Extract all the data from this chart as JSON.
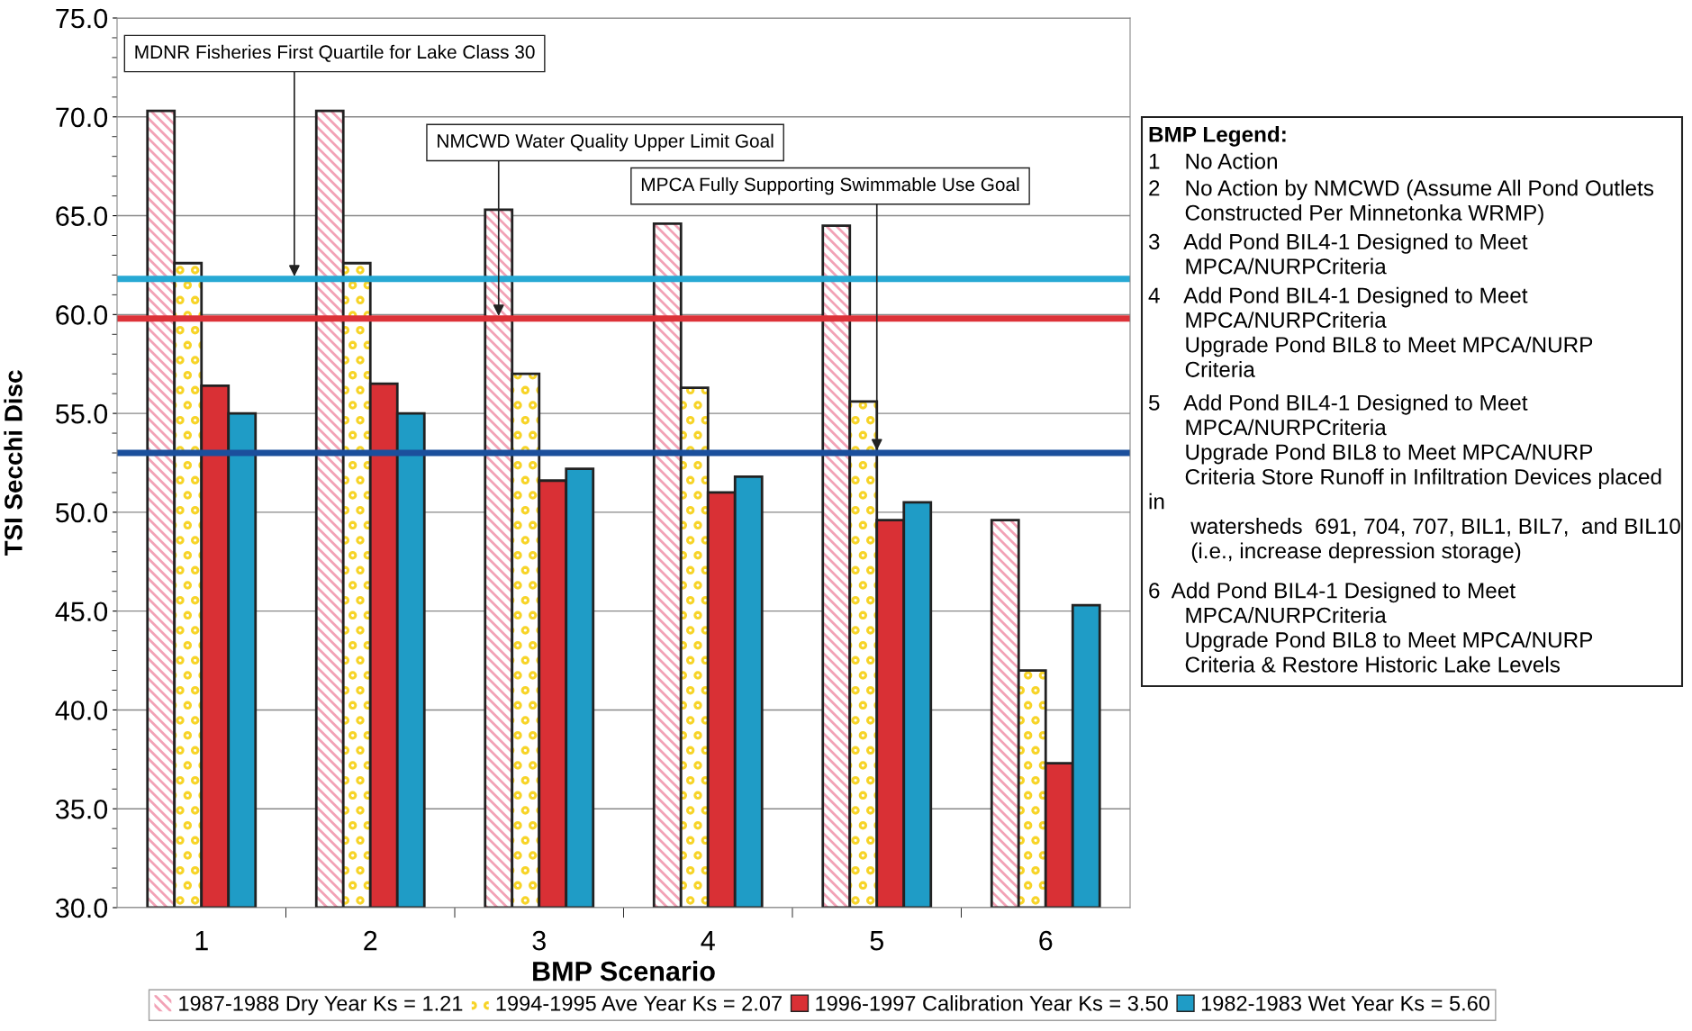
{
  "chart_data": {
    "type": "bar",
    "xlabel": "BMP Scenario",
    "ylabel": "TSI Secchi Disc",
    "categories": [
      "1",
      "2",
      "3",
      "4",
      "5",
      "6"
    ],
    "series": [
      {
        "name": "1987-1988 Dry Year Ks = 1.21",
        "color": "#f2a2b6",
        "values": [
          70.3,
          70.3,
          65.3,
          64.6,
          64.5,
          49.6
        ]
      },
      {
        "name": "1994-1995 Ave Year Ks = 2.07",
        "color": "#f7d428",
        "values": [
          62.6,
          62.6,
          57.0,
          56.3,
          55.6,
          42.0
        ]
      },
      {
        "name": "1996-1997 Calibration Year Ks = 3.50",
        "color": "#d93035",
        "values": [
          56.4,
          56.5,
          51.6,
          51.0,
          49.6,
          37.3
        ]
      },
      {
        "name": "1982-1983 Wet Year Ks = 5.60",
        "color": "#1f9cc6",
        "values": [
          55.0,
          55.0,
          52.2,
          51.8,
          50.5,
          45.3
        ]
      }
    ],
    "ylim": [
      30,
      75
    ],
    "yticks": [
      {
        "value": 30,
        "label": "30.0"
      },
      {
        "value": 35,
        "label": "35.0"
      },
      {
        "value": 40,
        "label": "40.0"
      },
      {
        "value": 45,
        "label": "45.0"
      },
      {
        "value": 50,
        "label": "50.0"
      },
      {
        "value": 55,
        "label": "55.0"
      },
      {
        "value": 60,
        "label": "60.0"
      },
      {
        "value": 65,
        "label": "65.0"
      },
      {
        "value": 70,
        "label": "70.0"
      },
      {
        "value": 75,
        "label": "75.0"
      }
    ],
    "ref_lines": [
      {
        "axis": "y",
        "value": 61.8,
        "label": "MDNR Fisheries First Quartile for Lake Class 30",
        "color": "#27a9d4"
      },
      {
        "axis": "y",
        "value": 59.8,
        "label": "NMCWD Water Quality Upper Limit Goal",
        "color": "#dd3238"
      },
      {
        "axis": "y",
        "value": 53.0,
        "label": "MPCA Fully Supporting Swimmable Use Goal",
        "color": "#1b4f9c"
      }
    ],
    "annotations": [
      "BMP Legend:",
      "1    No Action",
      "2    No Action by NMCWD (Assume All Pond Outlets\n      Constructed Per Minnetonka WRMP)",
      "3    Add Pond BIL4-1 Designed to Meet\n      MPCA/NURPCriteria",
      "4    Add Pond BIL4-1 Designed to Meet\n      MPCA/NURPCriteria\n      Upgrade Pond BIL8 to Meet MPCA/NURP\n      Criteria",
      "5    Add Pond BIL4-1 Designed to Meet\n      MPCA/NURPCriteria\n      Upgrade Pond BIL8 to Meet MPCA/NURP\n      Criteria Store Runoff in Infiltration Devices placed\nin\n       watersheds  691, 704, 707, BIL1, BIL7,  and BIL10\n       (i.e., increase depression storage)",
      "6  Add Pond BIL4-1 Designed to Meet\n      MPCA/NURPCriteria\n      Upgrade Pond BIL8 to Meet MPCA/NURP\n      Criteria & Restore Historic Lake Levels"
    ],
    "grid": "y",
    "legend": "bottom"
  }
}
